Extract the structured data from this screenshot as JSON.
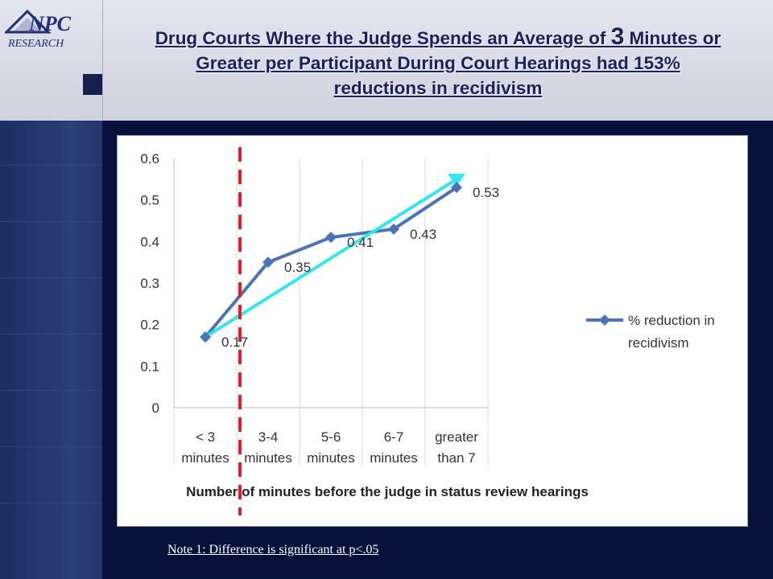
{
  "header": {
    "logo_text": "NPC RESEARCH",
    "title_line1_before": "Drug Courts Where the Judge Spends an Average of ",
    "title_line1_number": "3",
    "title_line1_after": " Minutes or",
    "title_line2": "Greater per Participant During Court Hearings had 153%",
    "title_line3": "reductions in recidivism"
  },
  "note": "Note 1: Difference is significant at p<.05",
  "colors": {
    "series": "#4a74b8",
    "trendline": "#33e6f2",
    "threshold": "#e51c23",
    "title": "#1a2060",
    "background": "#08113c"
  },
  "chart_data": {
    "type": "line",
    "categories": [
      [
        "< 3",
        "minutes"
      ],
      [
        "3-4",
        "minutes"
      ],
      [
        "5-6",
        "minutes"
      ],
      [
        "6-7",
        "minutes"
      ],
      [
        "greater",
        "than 7"
      ]
    ],
    "series": [
      {
        "name": "% reduction in recidivism",
        "values": [
          0.17,
          0.35,
          0.41,
          0.43,
          0.53
        ],
        "data_labels": [
          "0.17",
          "0.35",
          "0.41",
          "0.43",
          "0.53"
        ]
      }
    ],
    "trendline": {
      "from": 0.17,
      "to": 0.55
    },
    "threshold_between_categories": [
      0,
      1
    ],
    "xlabel": "Number of minutes before the judge in status review hearings",
    "ylabel": "",
    "ylim": [
      0,
      0.6
    ],
    "yticks": [
      "0",
      "0.1",
      "0.2",
      "0.3",
      "0.4",
      "0.5",
      "0.6"
    ],
    "grid": "vertical category separators",
    "legend_position": "right",
    "legend_lines": [
      "% reduction in",
      "recidivism"
    ]
  }
}
